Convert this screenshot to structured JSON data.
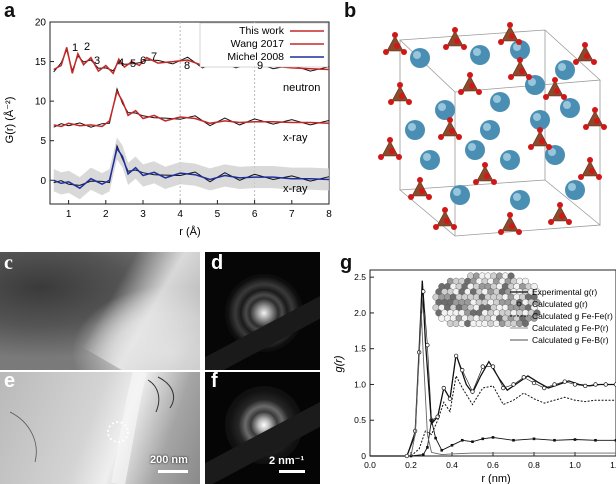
{
  "panels": {
    "a": "a",
    "b": "b",
    "c": "c",
    "d": "d",
    "e": "e",
    "f": "f",
    "g": "g"
  },
  "panel_a": {
    "ylabel": "G(r) (Å⁻²)",
    "xlabel": "r (Å)",
    "legend": [
      "This work",
      "Wang 2017",
      "Michel 2008"
    ],
    "legend_colors": [
      "#c62828",
      "#c62828",
      "#1f2fa0"
    ],
    "peak_labels": [
      "1",
      "2",
      "3",
      "4",
      "5",
      "6",
      "7",
      "8",
      "9"
    ],
    "curve_labels": {
      "neutron": "neutron",
      "xray1": "x-ray",
      "xray2": "x-ray"
    },
    "xticks": [
      "1",
      "2",
      "3",
      "4",
      "5",
      "6",
      "7",
      "8"
    ],
    "yticks": [
      "0",
      "5",
      "10",
      "15",
      "20"
    ]
  },
  "panel_e": {
    "scale_bar": "200 nm"
  },
  "panel_f": {
    "scale_bar": "2 nm⁻¹"
  },
  "panel_g": {
    "ylabel": "g(r)",
    "xlabel": "r (nm)",
    "xticks": [
      "0.0",
      "0.2",
      "0.4",
      "0.6",
      "0.8",
      "1.0",
      "1.2"
    ],
    "yticks": [
      "0",
      "0.5",
      "1.0",
      "1.5",
      "2.0",
      "2.5"
    ],
    "legend": [
      "Experimental g(r)",
      "Calculated g(r)",
      "Calculated g Fe-Fe(r)",
      "Calculated g Fe-P(r)",
      "Calculated g Fe-B(r)"
    ]
  },
  "chart_data": [
    {
      "type": "line",
      "panel": "a",
      "xlabel": "r (Å)",
      "ylabel": "G(r) (Å⁻²)",
      "xlim": [
        0.5,
        8
      ],
      "ylim": [
        -3,
        20
      ],
      "series": [
        {
          "name": "This work",
          "group": "neutron",
          "x": [
            0.6,
            0.8,
            0.95,
            1.1,
            1.25,
            1.4,
            1.6,
            1.8,
            2.0,
            2.2,
            2.35,
            2.5,
            2.7,
            2.9,
            3.1,
            3.4,
            3.8,
            4.2,
            4.6,
            5.0,
            5.5,
            6.0,
            6.5,
            7.0,
            7.5,
            8.0
          ],
          "y": [
            14,
            14.5,
            16.8,
            13.5,
            16.0,
            14.6,
            15.5,
            13.8,
            14.5,
            13.5,
            15.3,
            14.3,
            15.0,
            14.5,
            15.5,
            14.8,
            15.0,
            15.2,
            14.5,
            14.7,
            14.5,
            14.6,
            14.4,
            14.2,
            14.1,
            14.0
          ]
        },
        {
          "name": "This work",
          "group": "x-ray",
          "x": [
            0.6,
            0.8,
            1.0,
            1.3,
            1.6,
            1.9,
            2.1,
            2.3,
            2.45,
            2.6,
            2.8,
            3.0,
            3.3,
            3.6,
            4.0,
            4.4,
            4.8,
            5.2,
            5.6,
            6.0,
            6.5,
            7.0,
            7.5,
            8.0
          ],
          "y": [
            7.0,
            6.8,
            7.2,
            6.9,
            7.0,
            6.8,
            7.5,
            11.2,
            10.0,
            8.2,
            8.8,
            7.8,
            8.2,
            7.5,
            8.0,
            7.8,
            7.2,
            7.5,
            7.3,
            7.4,
            7.4,
            7.3,
            7.3,
            7.2
          ]
        },
        {
          "name": "Michel 2008",
          "group": "x-ray",
          "x": [
            0.6,
            0.8,
            1.0,
            1.3,
            1.6,
            1.9,
            2.1,
            2.3,
            2.45,
            2.6,
            2.8,
            3.0,
            3.3,
            3.6,
            4.0,
            4.4,
            4.8,
            5.2,
            5.6,
            6.0,
            6.5,
            7.0,
            7.5,
            8.0
          ],
          "y": [
            0.0,
            -0.4,
            -0.2,
            -1.0,
            0.2,
            -0.5,
            0.0,
            4.0,
            3.0,
            0.8,
            1.6,
            0.6,
            1.0,
            0.3,
            0.9,
            0.7,
            0.1,
            0.6,
            0.3,
            0.4,
            0.4,
            0.2,
            0.2,
            0.1
          ]
        }
      ]
    },
    {
      "type": "line",
      "panel": "g",
      "xlabel": "r (nm)",
      "ylabel": "g(r)",
      "xlim": [
        0,
        1.2
      ],
      "ylim": [
        0,
        2.6
      ],
      "series": [
        {
          "name": "Experimental g(r)",
          "x": [
            0,
            0.18,
            0.22,
            0.24,
            0.255,
            0.27,
            0.3,
            0.33,
            0.36,
            0.39,
            0.42,
            0.44,
            0.47,
            0.5,
            0.54,
            0.58,
            0.63,
            0.67,
            0.72,
            0.77,
            0.82,
            0.87,
            0.92,
            0.97,
            1.02,
            1.07,
            1.12,
            1.2
          ],
          "y": [
            0,
            0.0,
            0.3,
            1.5,
            2.45,
            1.6,
            0.45,
            0.55,
            0.95,
            0.8,
            1.42,
            1.25,
            1.0,
            0.88,
            1.12,
            1.32,
            1.08,
            0.92,
            1.02,
            1.12,
            1.03,
            0.95,
            1.0,
            1.05,
            1.0,
            0.98,
            1.0,
            1.0
          ]
        },
        {
          "name": "Calculated g(r)",
          "x": [
            0.18,
            0.22,
            0.24,
            0.26,
            0.28,
            0.3,
            0.33,
            0.36,
            0.39,
            0.42,
            0.45,
            0.5,
            0.55,
            0.6,
            0.65,
            0.7,
            0.75,
            0.8,
            0.85,
            0.9,
            0.95,
            1.0,
            1.05,
            1.1,
            1.15,
            1.2
          ],
          "y": [
            0.0,
            0.35,
            1.45,
            2.3,
            1.55,
            0.5,
            0.55,
            0.95,
            0.8,
            1.4,
            1.2,
            0.9,
            1.25,
            1.25,
            0.95,
            1.0,
            1.1,
            1.02,
            0.95,
            1.0,
            1.04,
            1.0,
            0.98,
            1.0,
            1.0,
            1.0
          ]
        },
        {
          "name": "Calculated g Fe-Fe(r)",
          "x": [
            0.2,
            0.24,
            0.27,
            0.3,
            0.33,
            0.36,
            0.39,
            0.42,
            0.45,
            0.5,
            0.55,
            0.6,
            0.65,
            0.7,
            0.75,
            0.8,
            0.85,
            0.9,
            0.95,
            1.0,
            1.05,
            1.1,
            1.15,
            1.2
          ],
          "y": [
            0.0,
            0.1,
            0.35,
            0.3,
            0.5,
            0.75,
            0.62,
            1.12,
            0.95,
            0.72,
            0.95,
            0.98,
            0.72,
            0.78,
            0.88,
            0.8,
            0.74,
            0.78,
            0.82,
            0.78,
            0.76,
            0.78,
            0.78,
            0.78
          ]
        },
        {
          "name": "Calculated g Fe-B(r)",
          "x": [
            0.2,
            0.26,
            0.28,
            0.3,
            0.32,
            0.35,
            0.4,
            0.45,
            0.5,
            0.55,
            0.6,
            0.7,
            0.8,
            0.9,
            1.0,
            1.1,
            1.2
          ],
          "y": [
            0.0,
            0.02,
            0.12,
            0.5,
            0.25,
            0.08,
            0.15,
            0.22,
            0.2,
            0.24,
            0.26,
            0.22,
            0.24,
            0.22,
            0.23,
            0.22,
            0.22
          ]
        },
        {
          "name": "Calculated g Fe-P(r)",
          "x": [
            0.2,
            0.22,
            0.24,
            0.25,
            0.26,
            0.28,
            0.3,
            0.35,
            0.4,
            0.5,
            0.6,
            0.8,
            1.0,
            1.2
          ],
          "y": [
            0.0,
            0.3,
            1.4,
            2.0,
            1.4,
            0.3,
            0.05,
            0.02,
            0.03,
            0.04,
            0.04,
            0.04,
            0.04,
            0.04
          ]
        }
      ]
    }
  ]
}
